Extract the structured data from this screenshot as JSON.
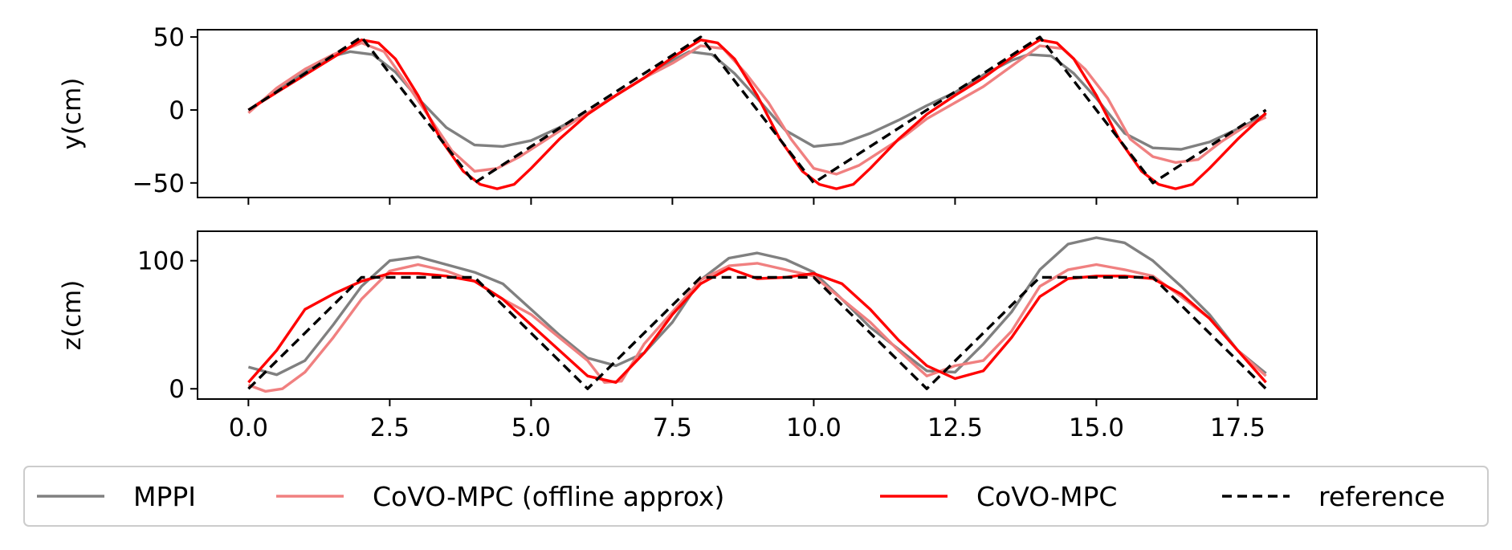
{
  "chart_data": [
    {
      "type": "line",
      "ylabel": "y(cm)",
      "xlabel": "",
      "xlim": [
        -0.9,
        18.9
      ],
      "ylim": [
        -60,
        55
      ],
      "yticks": [
        50,
        0,
        -50
      ],
      "ytick_labels": [
        "50",
        "0",
        "−50"
      ],
      "xticks": [
        0,
        2.5,
        5,
        7.5,
        10,
        12.5,
        15,
        17.5
      ],
      "xtick_labels_shown": false,
      "series": [
        {
          "name": "MPPI",
          "color": "#808080",
          "dash": "",
          "x": [
            0,
            0.5,
            1,
            1.5,
            1.8,
            2.2,
            2.6,
            3,
            3.5,
            4,
            4.5,
            5,
            5.5,
            6,
            6.5,
            7,
            7.5,
            7.8,
            8.2,
            8.6,
            9,
            9.5,
            10,
            10.5,
            11,
            11.5,
            12,
            12.5,
            13,
            13.5,
            13.8,
            14.2,
            14.6,
            15,
            15.5,
            16,
            16.5,
            17,
            17.5,
            18
          ],
          "y": [
            0,
            13,
            26,
            37,
            40,
            38,
            26,
            8,
            -12,
            -24,
            -25,
            -21,
            -12,
            -2,
            10,
            22,
            34,
            40,
            38,
            25,
            8,
            -14,
            -25,
            -23,
            -16,
            -7,
            3,
            12,
            24,
            34,
            38,
            37,
            25,
            8,
            -16,
            -26,
            -27,
            -22,
            -13,
            -3
          ]
        },
        {
          "name": "CoVO-MPC (offline approx)",
          "color": "#f08080",
          "dash": "",
          "x": [
            0,
            0.5,
            1,
            1.5,
            2,
            2.4,
            2.8,
            3.2,
            3.6,
            4,
            4.4,
            4.8,
            5.2,
            5.6,
            6,
            6.5,
            7,
            7.5,
            8,
            8.4,
            8.8,
            9.2,
            9.6,
            10,
            10.4,
            10.8,
            11.2,
            11.6,
            12,
            12.5,
            13,
            13.5,
            14,
            14.4,
            14.8,
            15.2,
            15.6,
            16,
            16.4,
            16.8,
            17.2,
            17.6,
            18
          ],
          "y": [
            -2,
            15,
            28,
            38,
            46,
            40,
            18,
            -5,
            -28,
            -42,
            -40,
            -32,
            -22,
            -12,
            -2,
            10,
            22,
            32,
            44,
            42,
            25,
            5,
            -20,
            -40,
            -44,
            -38,
            -28,
            -18,
            -6,
            5,
            16,
            30,
            44,
            42,
            28,
            8,
            -20,
            -32,
            -36,
            -34,
            -22,
            -12,
            -5
          ]
        },
        {
          "name": "CoVO-MPC",
          "color": "#ff0000",
          "dash": "",
          "x": [
            0,
            0.5,
            1,
            1.5,
            2,
            2.3,
            2.6,
            3,
            3.4,
            3.8,
            4.1,
            4.4,
            4.7,
            5,
            5.5,
            6,
            6.5,
            7,
            7.5,
            8,
            8.3,
            8.6,
            9,
            9.4,
            9.8,
            10.1,
            10.4,
            10.7,
            11,
            11.5,
            12,
            12.5,
            13,
            13.5,
            14,
            14.3,
            14.6,
            15,
            15.4,
            15.8,
            16.1,
            16.4,
            16.7,
            17,
            17.5,
            18
          ],
          "y": [
            0,
            12,
            24,
            36,
            48,
            46,
            35,
            10,
            -20,
            -42,
            -51,
            -54,
            -51,
            -40,
            -20,
            -3,
            10,
            22,
            36,
            48,
            46,
            35,
            10,
            -20,
            -42,
            -51,
            -54,
            -51,
            -40,
            -20,
            -3,
            10,
            22,
            36,
            48,
            46,
            35,
            10,
            -20,
            -42,
            -51,
            -54,
            -51,
            -40,
            -20,
            -2
          ]
        },
        {
          "name": "reference",
          "color": "#000000",
          "dash": "12,7",
          "x": [
            0,
            2,
            4,
            6,
            8,
            10,
            12,
            14,
            16,
            18
          ],
          "y": [
            0,
            50,
            -50,
            0,
            50,
            -50,
            0,
            50,
            -50,
            0
          ]
        }
      ]
    },
    {
      "type": "line",
      "ylabel": "z(cm)",
      "xlabel": "",
      "xlim": [
        -0.9,
        18.9
      ],
      "ylim": [
        -8,
        123
      ],
      "yticks": [
        100,
        0
      ],
      "ytick_labels": [
        "100",
        "0"
      ],
      "xticks": [
        0,
        2.5,
        5,
        7.5,
        10,
        12.5,
        15,
        17.5
      ],
      "xtick_labels": [
        "0.0",
        "2.5",
        "5.0",
        "7.5",
        "10.0",
        "12.5",
        "15.0",
        "17.5"
      ],
      "series": [
        {
          "name": "MPPI",
          "color": "#808080",
          "dash": "",
          "x": [
            0,
            0.5,
            1,
            1.5,
            2,
            2.5,
            3,
            3.5,
            4,
            4.5,
            5,
            5.5,
            6,
            6.5,
            7,
            7.5,
            8,
            8.5,
            9,
            9.5,
            10,
            10.5,
            11,
            11.5,
            12,
            12.5,
            13,
            13.5,
            14,
            14.5,
            15,
            15.5,
            16,
            16.5,
            17,
            17.5,
            18
          ],
          "y": [
            17,
            11,
            22,
            50,
            80,
            100,
            103,
            97,
            91,
            82,
            62,
            42,
            24,
            18,
            28,
            52,
            85,
            102,
            106,
            101,
            91,
            70,
            48,
            31,
            14,
            13,
            35,
            60,
            93,
            113,
            118,
            114,
            100,
            80,
            58,
            30,
            12
          ]
        },
        {
          "name": "CoVO-MPC (offline approx)",
          "color": "#f08080",
          "dash": "",
          "x": [
            0,
            0.3,
            0.6,
            1,
            1.5,
            2,
            2.5,
            3,
            3.5,
            4,
            4.5,
            5,
            5.5,
            6,
            6.3,
            6.6,
            7,
            7.5,
            8,
            8.5,
            9,
            9.5,
            10,
            10.5,
            11,
            11.5,
            12,
            12.5,
            13,
            13.5,
            14,
            14.5,
            15,
            15.5,
            16,
            16.5,
            17,
            17.5,
            18
          ],
          "y": [
            3,
            -2,
            0,
            13,
            40,
            70,
            92,
            97,
            92,
            84,
            70,
            58,
            40,
            22,
            5,
            6,
            35,
            60,
            85,
            96,
            98,
            93,
            88,
            70,
            52,
            30,
            10,
            18,
            22,
            45,
            80,
            93,
            97,
            93,
            88,
            72,
            55,
            30,
            10
          ]
        },
        {
          "name": "CoVO-MPC",
          "color": "#ff0000",
          "dash": "",
          "x": [
            0,
            0.5,
            1,
            1.5,
            2,
            2.5,
            3,
            3.5,
            4,
            4.5,
            5,
            5.5,
            6,
            6.5,
            7,
            7.5,
            8,
            8.5,
            9,
            9.5,
            10,
            10.5,
            11,
            11.5,
            12,
            12.5,
            13,
            13.5,
            14,
            14.5,
            15,
            15.5,
            16,
            16.5,
            17,
            17.5,
            18
          ],
          "y": [
            5,
            30,
            62,
            74,
            84,
            90,
            90,
            88,
            84,
            70,
            50,
            30,
            10,
            5,
            28,
            58,
            82,
            94,
            86,
            87,
            90,
            82,
            62,
            38,
            18,
            8,
            14,
            40,
            72,
            86,
            88,
            88,
            86,
            74,
            55,
            30,
            5
          ]
        },
        {
          "name": "reference",
          "color": "#000000",
          "dash": "12,7",
          "x": [
            0,
            2,
            4,
            6,
            8,
            10,
            12,
            14,
            16,
            18
          ],
          "y": [
            0,
            87,
            87,
            0,
            87,
            87,
            0,
            87,
            87,
            0
          ]
        }
      ]
    }
  ],
  "legend": {
    "placement": "bottom",
    "entries": [
      {
        "label": "MPPI",
        "color": "#808080",
        "dash": ""
      },
      {
        "label": "CoVO-MPC (offline approx)",
        "color": "#f08080",
        "dash": ""
      },
      {
        "label": "CoVO-MPC",
        "color": "#ff0000",
        "dash": ""
      },
      {
        "label": "reference",
        "color": "#000000",
        "dash": "12,7"
      }
    ]
  }
}
